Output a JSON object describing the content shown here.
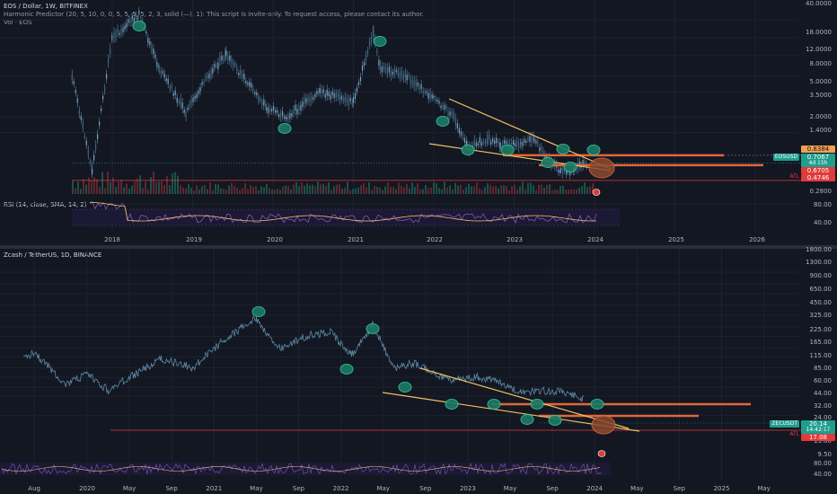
{
  "top": {
    "title": "EOS / Dollar, 1W, BITFINEX",
    "indicator": "Harmonic Predictor (20, 5, 10, 0, 0, 5, 5, 5, 5, 2, 3, solid (—), 1): This script is invite-only. To request access, please contact its author.",
    "volume": "Vol · EOS",
    "rsi_label": "RSI (14, close, SMA, 14, 2)",
    "price_ticks": [
      "40.0000",
      "18.0000",
      "12.0000",
      "8.0000",
      "5.0000",
      "3.5000",
      "2.0000",
      "1.4000",
      "0.2800"
    ],
    "rsi_ticks": [
      "80.00",
      "40.00"
    ],
    "time_ticks": [
      "2018",
      "2019",
      "2020",
      "2021",
      "2022",
      "2023",
      "2024",
      "2025",
      "2026"
    ],
    "tags": {
      "orange": "0.8384",
      "symbol": "EOSUSD",
      "price": "0.7067",
      "countdown": "4d 15h",
      "red1": "0.6705",
      "red2": "0.4746",
      "atl": "ATL"
    }
  },
  "bottom": {
    "title": "Zcash / TetherUS, 1D, BINANCE",
    "price_ticks": [
      "1800.00",
      "1300.00",
      "900.00",
      "650.00",
      "450.00",
      "325.00",
      "225.00",
      "165.00",
      "115.00",
      "85.00",
      "60.00",
      "44.00",
      "32.00",
      "24.00",
      "13.00",
      "9.50"
    ],
    "rsi_ticks": [
      "80.00",
      "40.00"
    ],
    "time_ticks": [
      "Aug",
      "2020",
      "May",
      "Sep",
      "2021",
      "May",
      "Sep",
      "2022",
      "May",
      "Sep",
      "2023",
      "May",
      "Sep",
      "2024",
      "May",
      "Sep",
      "2025",
      "May"
    ],
    "tags": {
      "symbol": "ZECUSDT",
      "price": "20.14",
      "countdown": "14:42:17",
      "red": "17.08",
      "atl": "ATL"
    }
  },
  "chart_data": [
    {
      "type": "line",
      "title": "EOS / Dollar, 1W, BITFINEX",
      "x": [
        "2017-07",
        "2017-10",
        "2018-01",
        "2018-04",
        "2018-05",
        "2018-08",
        "2018-12",
        "2019-04",
        "2019-06",
        "2019-12",
        "2020-03",
        "2020-08",
        "2021-01",
        "2021-04",
        "2021-05",
        "2021-09",
        "2022-01",
        "2022-04",
        "2022-06",
        "2022-09",
        "2022-11",
        "2023-02",
        "2023-04",
        "2023-06",
        "2023-08",
        "2023-10",
        "2023-11",
        "2023-12"
      ],
      "series": [
        {
          "values": [
            5.0,
            0.6,
            12.0,
            18.0,
            20.0,
            6.0,
            2.2,
            6.0,
            8.0,
            2.5,
            2.0,
            3.5,
            2.8,
            14.0,
            6.0,
            5.0,
            3.0,
            2.0,
            1.0,
            1.2,
            1.1,
            1.1,
            1.2,
            0.75,
            0.58,
            0.6,
            0.68,
            0.71
          ]
        }
      ],
      "ylim": [
        0.28,
        40
      ],
      "log_scale": true,
      "annotations": [
        "0.8384",
        "0.7067",
        "0.6705",
        "0.4746"
      ]
    },
    {
      "type": "line",
      "title": "Zcash / TetherUS, 1D, BINANCE",
      "x": [
        "2019-07",
        "2019-08",
        "2019-11",
        "2020-01",
        "2020-03",
        "2020-08",
        "2020-11",
        "2021-02",
        "2021-05",
        "2021-07",
        "2021-10",
        "2021-12",
        "2022-02",
        "2022-04",
        "2022-06",
        "2022-08",
        "2022-11",
        "2023-02",
        "2023-04",
        "2023-06",
        "2023-08",
        "2023-10",
        "2023-12"
      ],
      "series": [
        {
          "values": [
            80,
            100,
            35,
            48,
            29,
            80,
            60,
            150,
            300,
            110,
            170,
            190,
            90,
            240,
            60,
            70,
            40,
            45,
            38,
            27,
            29,
            28,
            21
          ]
        }
      ],
      "ylim": [
        9.5,
        1800
      ],
      "log_scale": true,
      "annotations": [
        "20.14",
        "17.08"
      ]
    }
  ]
}
